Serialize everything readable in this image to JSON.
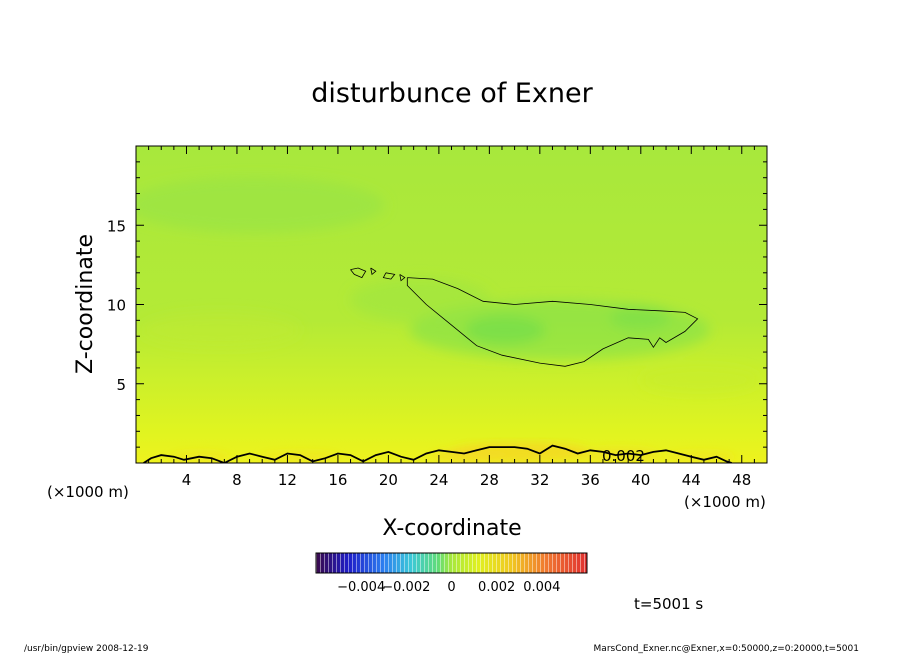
{
  "chart_data": {
    "type": "heatmap",
    "title": "disturbunce of Exner",
    "xlabel": "X-coordinate",
    "ylabel": "Z-coordinate",
    "x_unit": "(×1000 m)",
    "xlim": [
      0,
      50
    ],
    "ylim": [
      0,
      20
    ],
    "x_ticks": [
      4,
      8,
      12,
      16,
      20,
      24,
      28,
      32,
      36,
      40,
      44,
      48
    ],
    "y_ticks": [
      5,
      10,
      15
    ],
    "contour_label": "0.002",
    "colorbar": {
      "range": [
        -0.006,
        0.006
      ],
      "tick_labels": [
        "−0.004",
        "−0.002",
        "0",
        "0.002",
        "0.004"
      ],
      "tick_values": [
        -0.004,
        -0.002,
        0,
        0.002,
        0.004
      ]
    },
    "time_label": "t=5001 s",
    "footer_left": "/usr/bin/gpview   2008-12-19",
    "footer_right": "MarsCond_Exner.nc@Exner,x=0:50000,z=0:20000,t=5001",
    "contours": [
      {
        "level": -0.002,
        "points": [
          [
            21.5,
            11.7
          ],
          [
            23.5,
            11.6
          ],
          [
            25.5,
            11.0
          ],
          [
            27.5,
            10.2
          ],
          [
            30,
            10.0
          ],
          [
            33,
            10.2
          ],
          [
            36,
            10.0
          ],
          [
            39,
            9.7
          ],
          [
            41.5,
            9.6
          ],
          [
            43.5,
            9.5
          ],
          [
            44.5,
            9.1
          ],
          [
            43.5,
            8.3
          ],
          [
            42,
            7.6
          ],
          [
            41.5,
            7.9
          ],
          [
            41,
            7.3
          ],
          [
            40.6,
            7.8
          ],
          [
            39,
            7.9
          ],
          [
            37,
            7.2
          ],
          [
            35.5,
            6.4
          ],
          [
            34,
            6.1
          ],
          [
            32,
            6.3
          ],
          [
            29,
            6.8
          ],
          [
            27,
            7.4
          ],
          [
            25,
            8.7
          ],
          [
            23,
            10.0
          ],
          [
            21.5,
            11.2
          ],
          [
            21.5,
            11.7
          ]
        ]
      },
      {
        "level": -0.002,
        "points": [
          [
            17.0,
            12.2
          ],
          [
            17.6,
            12.3
          ],
          [
            18.2,
            12.1
          ],
          [
            17.9,
            11.7
          ],
          [
            17.3,
            11.9
          ],
          [
            17.0,
            12.2
          ]
        ]
      },
      {
        "level": -0.002,
        "points": [
          [
            18.6,
            12.3
          ],
          [
            19.0,
            12.1
          ],
          [
            18.7,
            11.9
          ],
          [
            18.6,
            12.3
          ]
        ]
      },
      {
        "level": -0.002,
        "points": [
          [
            19.8,
            12.0
          ],
          [
            20.5,
            11.9
          ],
          [
            20.2,
            11.6
          ],
          [
            19.6,
            11.7
          ],
          [
            19.8,
            12.0
          ]
        ]
      },
      {
        "level": -0.002,
        "points": [
          [
            20.9,
            11.9
          ],
          [
            21.3,
            11.7
          ],
          [
            21.0,
            11.5
          ],
          [
            20.9,
            11.9
          ]
        ]
      },
      {
        "level": 0.002,
        "points": [
          [
            0.6,
            0
          ],
          [
            1.2,
            0.3
          ],
          [
            2,
            0.5
          ],
          [
            3,
            0.4
          ],
          [
            3.8,
            0.2
          ],
          [
            5,
            0.4
          ],
          [
            6,
            0.3
          ],
          [
            7,
            0.0
          ],
          [
            8,
            0.4
          ],
          [
            9,
            0.6
          ],
          [
            10,
            0.4
          ],
          [
            11,
            0.2
          ],
          [
            12,
            0.6
          ],
          [
            13,
            0.5
          ],
          [
            14,
            0.1
          ],
          [
            15,
            0.3
          ],
          [
            16,
            0.6
          ],
          [
            17,
            0.5
          ],
          [
            18,
            0.1
          ],
          [
            19,
            0.5
          ],
          [
            20,
            0.7
          ],
          [
            21,
            0.4
          ],
          [
            22,
            0.2
          ],
          [
            23,
            0.6
          ],
          [
            24,
            0.8
          ],
          [
            25,
            0.7
          ],
          [
            26,
            0.6
          ],
          [
            27,
            0.8
          ],
          [
            28,
            1.0
          ],
          [
            29,
            1.0
          ],
          [
            30,
            1.0
          ],
          [
            31,
            0.9
          ],
          [
            32,
            0.6
          ],
          [
            33,
            1.1
          ],
          [
            34,
            0.9
          ],
          [
            35,
            0.6
          ],
          [
            36,
            0.8
          ],
          [
            37,
            0.7
          ],
          [
            38,
            0.5
          ],
          [
            39,
            0.6
          ],
          [
            40,
            0.5
          ],
          [
            41,
            0.7
          ],
          [
            42,
            0.8
          ],
          [
            43,
            0.6
          ],
          [
            44,
            0.4
          ],
          [
            45,
            0.2
          ],
          [
            46,
            0.4
          ],
          [
            46.8,
            0.1
          ],
          [
            47.2,
            0
          ]
        ]
      }
    ]
  }
}
